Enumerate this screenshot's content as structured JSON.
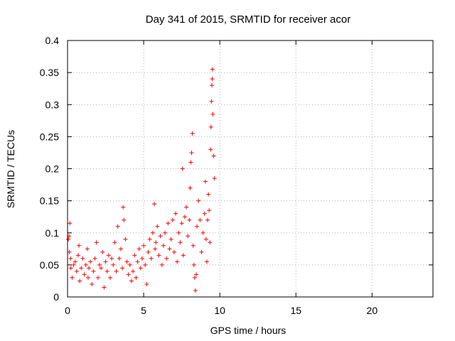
{
  "chart_data": {
    "type": "scatter",
    "title": "Day 341 of 2015, SRMTID for receiver acor",
    "xlabel": "GPS time / hours",
    "ylabel": "SRMTID / TECUs",
    "xlim": [
      0,
      24
    ],
    "ylim": [
      0,
      0.4
    ],
    "x_ticks": [
      0,
      5,
      10,
      15,
      20
    ],
    "x_tick_labels": [
      "0",
      "5",
      "10",
      "15",
      "20"
    ],
    "y_ticks": [
      0,
      0.05,
      0.1,
      0.15,
      0.2,
      0.25,
      0.3,
      0.35,
      0.4
    ],
    "y_tick_labels": [
      "0",
      "0.05",
      "0.1",
      "0.15",
      "0.2",
      "0.25",
      "0.3",
      "0.35",
      "0.4"
    ],
    "grid": true,
    "marker": "+",
    "marker_color": "#ff0000",
    "series": [
      {
        "name": "acor",
        "color": "#ff0000",
        "points": [
          [
            0.05,
            0.09
          ],
          [
            0.1,
            0.095
          ],
          [
            0.12,
            0.07
          ],
          [
            0.15,
            0.115
          ],
          [
            0.2,
            0.06
          ],
          [
            0.22,
            0.045
          ],
          [
            0.3,
            0.03
          ],
          [
            0.4,
            0.05
          ],
          [
            0.5,
            0.055
          ],
          [
            0.6,
            0.04
          ],
          [
            0.7,
            0.065
          ],
          [
            0.75,
            0.08
          ],
          [
            0.8,
            0.025
          ],
          [
            0.9,
            0.045
          ],
          [
            1.0,
            0.06
          ],
          [
            1.1,
            0.035
          ],
          [
            1.2,
            0.05
          ],
          [
            1.3,
            0.075
          ],
          [
            1.35,
            0.03
          ],
          [
            1.4,
            0.045
          ],
          [
            1.5,
            0.055
          ],
          [
            1.6,
            0.02
          ],
          [
            1.7,
            0.04
          ],
          [
            1.8,
            0.06
          ],
          [
            1.9,
            0.085
          ],
          [
            2.0,
            0.03
          ],
          [
            2.1,
            0.05
          ],
          [
            2.2,
            0.045
          ],
          [
            2.3,
            0.07
          ],
          [
            2.4,
            0.015
          ],
          [
            2.5,
            0.055
          ],
          [
            2.6,
            0.04
          ],
          [
            2.7,
            0.065
          ],
          [
            2.8,
            0.03
          ],
          [
            2.9,
            0.06
          ],
          [
            3.0,
            0.05
          ],
          [
            3.1,
            0.085
          ],
          [
            3.2,
            0.04
          ],
          [
            3.3,
            0.11
          ],
          [
            3.4,
            0.06
          ],
          [
            3.5,
            0.075
          ],
          [
            3.6,
            0.045
          ],
          [
            3.65,
            0.14
          ],
          [
            3.7,
            0.12
          ],
          [
            3.8,
            0.09
          ],
          [
            3.9,
            0.055
          ],
          [
            4.0,
            0.035
          ],
          [
            4.1,
            0.05
          ],
          [
            4.2,
            0.025
          ],
          [
            4.3,
            0.04
          ],
          [
            4.4,
            0.065
          ],
          [
            4.5,
            0.03
          ],
          [
            4.6,
            0.055
          ],
          [
            4.7,
            0.075
          ],
          [
            4.8,
            0.045
          ],
          [
            4.9,
            0.06
          ],
          [
            5.0,
            0.08
          ],
          [
            5.1,
            0.05
          ],
          [
            5.2,
            0.02
          ],
          [
            5.3,
            0.07
          ],
          [
            5.4,
            0.09
          ],
          [
            5.5,
            0.06
          ],
          [
            5.6,
            0.1
          ],
          [
            5.7,
            0.145
          ],
          [
            5.75,
            0.075
          ],
          [
            5.8,
            0.085
          ],
          [
            5.9,
            0.11
          ],
          [
            6.0,
            0.065
          ],
          [
            6.1,
            0.095
          ],
          [
            6.2,
            0.05
          ],
          [
            6.3,
            0.08
          ],
          [
            6.4,
            0.1
          ],
          [
            6.5,
            0.06
          ],
          [
            6.6,
            0.115
          ],
          [
            6.7,
            0.075
          ],
          [
            6.8,
            0.09
          ],
          [
            6.9,
            0.12
          ],
          [
            7.0,
            0.07
          ],
          [
            7.1,
            0.13
          ],
          [
            7.2,
            0.055
          ],
          [
            7.3,
            0.1
          ],
          [
            7.4,
            0.085
          ],
          [
            7.5,
            0.115
          ],
          [
            7.55,
            0.2
          ],
          [
            7.6,
            0.065
          ],
          [
            7.7,
            0.125
          ],
          [
            7.8,
            0.14
          ],
          [
            7.9,
            0.095
          ],
          [
            8.0,
            0.12
          ],
          [
            8.05,
            0.17
          ],
          [
            8.1,
            0.21
          ],
          [
            8.15,
            0.225
          ],
          [
            8.2,
            0.255
          ],
          [
            8.25,
            0.08
          ],
          [
            8.3,
            0.05
          ],
          [
            8.35,
            0.03
          ],
          [
            8.4,
            0.01
          ],
          [
            8.45,
            0.035
          ],
          [
            8.5,
            0.11
          ],
          [
            8.6,
            0.15
          ],
          [
            8.7,
            0.12
          ],
          [
            8.8,
            0.07
          ],
          [
            8.9,
            0.1
          ],
          [
            9.0,
            0.13
          ],
          [
            9.05,
            0.18
          ],
          [
            9.1,
            0.09
          ],
          [
            9.15,
            0.055
          ],
          [
            9.2,
            0.12
          ],
          [
            9.25,
            0.16
          ],
          [
            9.3,
            0.135
          ],
          [
            9.35,
            0.085
          ],
          [
            9.4,
            0.23
          ],
          [
            9.42,
            0.265
          ],
          [
            9.45,
            0.305
          ],
          [
            9.48,
            0.33
          ],
          [
            9.5,
            0.34
          ],
          [
            9.52,
            0.355
          ],
          [
            9.55,
            0.285
          ],
          [
            9.6,
            0.22
          ],
          [
            9.65,
            0.185
          ]
        ]
      }
    ]
  }
}
